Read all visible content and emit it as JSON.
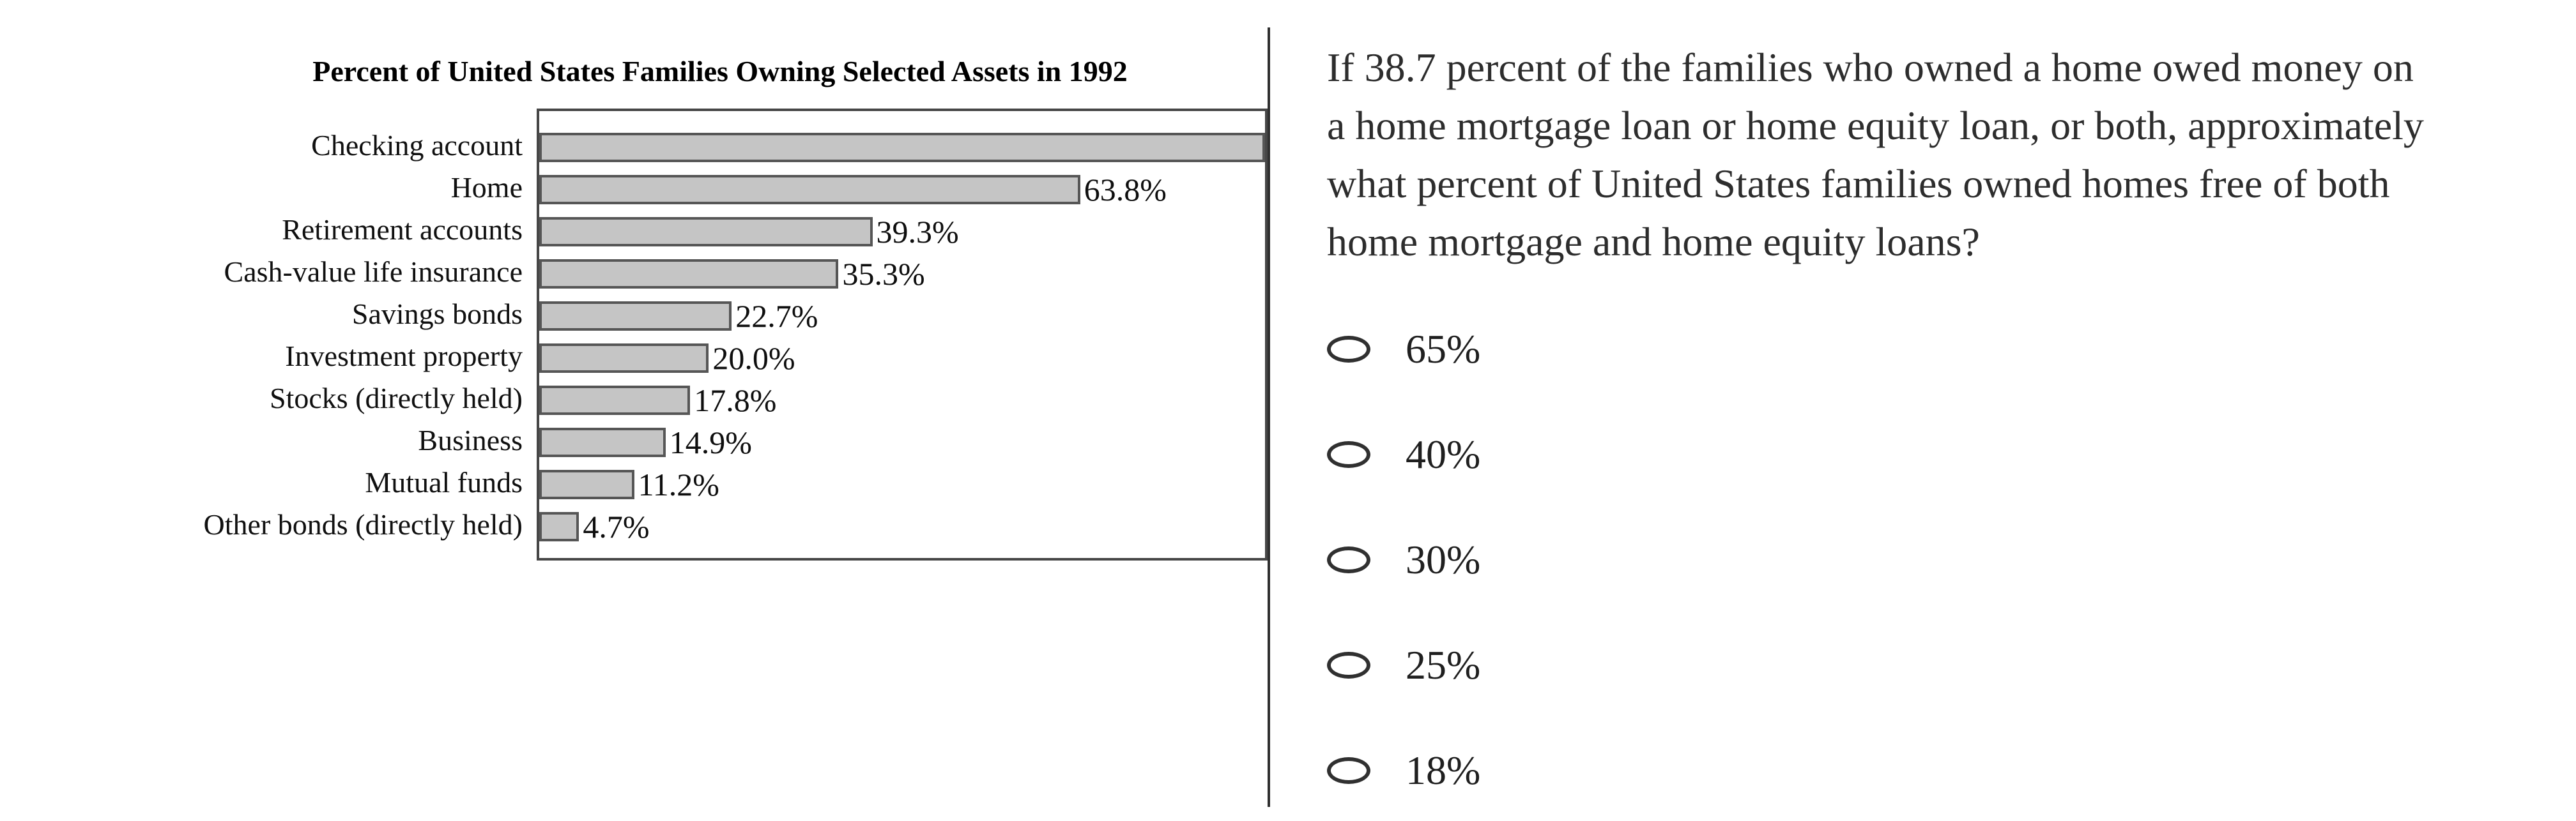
{
  "chart_data": {
    "type": "bar",
    "orientation": "horizontal",
    "title": "Percent of United States Families Owning Selected Assets in 1992",
    "categories": [
      "Checking account",
      "Home",
      "Retirement accounts",
      "Cash-value life insurance",
      "Savings bonds",
      "Investment property",
      "Stocks (directly held)",
      "Business",
      "Mutual funds",
      "Other bonds (directly held)"
    ],
    "values": [
      85.6,
      63.8,
      39.3,
      35.3,
      22.7,
      20.0,
      17.8,
      14.9,
      11.2,
      4.7
    ],
    "value_labels": [
      "",
      "63.8%",
      "39.3%",
      "35.3%",
      "22.7%",
      "20.0%",
      "17.8%",
      "14.9%",
      "11.2%",
      "4.7%"
    ],
    "xlim": [
      0,
      85.6
    ],
    "notes": "First bar (Checking account) extends to the right edge of the plot box and shows no value label; 85.6 is the axis-edge estimate.",
    "grid": false,
    "legend": false,
    "bar_fill": "#c5c5c5",
    "bar_border": "#565656"
  },
  "question": {
    "lines": [
      "If 38.7 percent of the families who owned a home owed money on",
      "a home mortgage loan or home equity loan, or both, approximately",
      "what percent of United States families owned homes free of both",
      "home mortgage and home equity loans?"
    ]
  },
  "options": [
    {
      "label": "65%",
      "selected": false
    },
    {
      "label": "40%",
      "selected": false
    },
    {
      "label": "30%",
      "selected": false
    },
    {
      "label": "25%",
      "selected": false
    },
    {
      "label": "18%",
      "selected": false
    }
  ],
  "colors": {
    "divider": "#2f2f2f",
    "plot_border": "#474747",
    "text": "#141414"
  }
}
